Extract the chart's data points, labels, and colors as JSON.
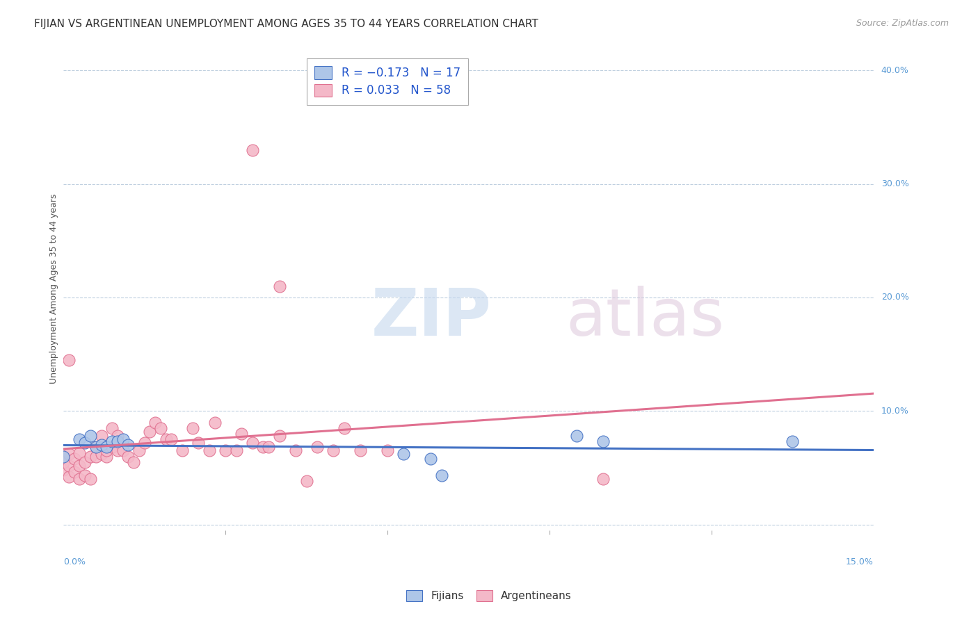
{
  "title": "FIJIAN VS ARGENTINEAN UNEMPLOYMENT AMONG AGES 35 TO 44 YEARS CORRELATION CHART",
  "source_text": "Source: ZipAtlas.com",
  "ylabel": "Unemployment Among Ages 35 to 44 years",
  "xlim": [
    0.0,
    0.15
  ],
  "ylim": [
    -0.005,
    0.42
  ],
  "fijian_color": "#aec6e8",
  "argentinean_color": "#f4b8c8",
  "fijian_line_color": "#4472c4",
  "argentinean_line_color": "#e07090",
  "background_color": "#ffffff",
  "grid_color": "#c0d0e0",
  "fijian_x": [
    0.0,
    0.003,
    0.004,
    0.005,
    0.006,
    0.007,
    0.008,
    0.009,
    0.01,
    0.011,
    0.012,
    0.063,
    0.068,
    0.07,
    0.095,
    0.1,
    0.135
  ],
  "fijian_y": [
    0.06,
    0.075,
    0.072,
    0.078,
    0.068,
    0.07,
    0.068,
    0.073,
    0.073,
    0.075,
    0.07,
    0.062,
    0.058,
    0.043,
    0.078,
    0.073,
    0.073
  ],
  "argentinean_x": [
    0.0,
    0.0,
    0.0,
    0.001,
    0.001,
    0.001,
    0.002,
    0.002,
    0.003,
    0.003,
    0.003,
    0.004,
    0.004,
    0.005,
    0.005,
    0.006,
    0.006,
    0.007,
    0.007,
    0.008,
    0.008,
    0.009,
    0.009,
    0.01,
    0.01,
    0.011,
    0.012,
    0.013,
    0.014,
    0.015,
    0.016,
    0.017,
    0.018,
    0.019,
    0.02,
    0.022,
    0.024,
    0.025,
    0.027,
    0.028,
    0.03,
    0.032,
    0.033,
    0.035,
    0.037,
    0.038,
    0.04,
    0.043,
    0.045,
    0.047,
    0.05,
    0.052,
    0.055,
    0.06,
    0.035,
    0.04,
    0.001,
    0.1
  ],
  "argentinean_y": [
    0.048,
    0.055,
    0.06,
    0.042,
    0.052,
    0.062,
    0.046,
    0.058,
    0.04,
    0.052,
    0.063,
    0.043,
    0.055,
    0.04,
    0.06,
    0.06,
    0.068,
    0.062,
    0.078,
    0.06,
    0.065,
    0.068,
    0.085,
    0.065,
    0.078,
    0.065,
    0.06,
    0.055,
    0.065,
    0.072,
    0.082,
    0.09,
    0.085,
    0.075,
    0.075,
    0.065,
    0.085,
    0.072,
    0.065,
    0.09,
    0.065,
    0.065,
    0.08,
    0.072,
    0.068,
    0.068,
    0.078,
    0.065,
    0.038,
    0.068,
    0.065,
    0.085,
    0.065,
    0.065,
    0.33,
    0.21,
    0.145,
    0.04
  ],
  "title_fontsize": 11,
  "source_fontsize": 9,
  "axis_label_fontsize": 9,
  "legend_fontsize": 12,
  "watermark_zip_color": "#c8d8ec",
  "watermark_atlas_color": "#d8c8d8"
}
